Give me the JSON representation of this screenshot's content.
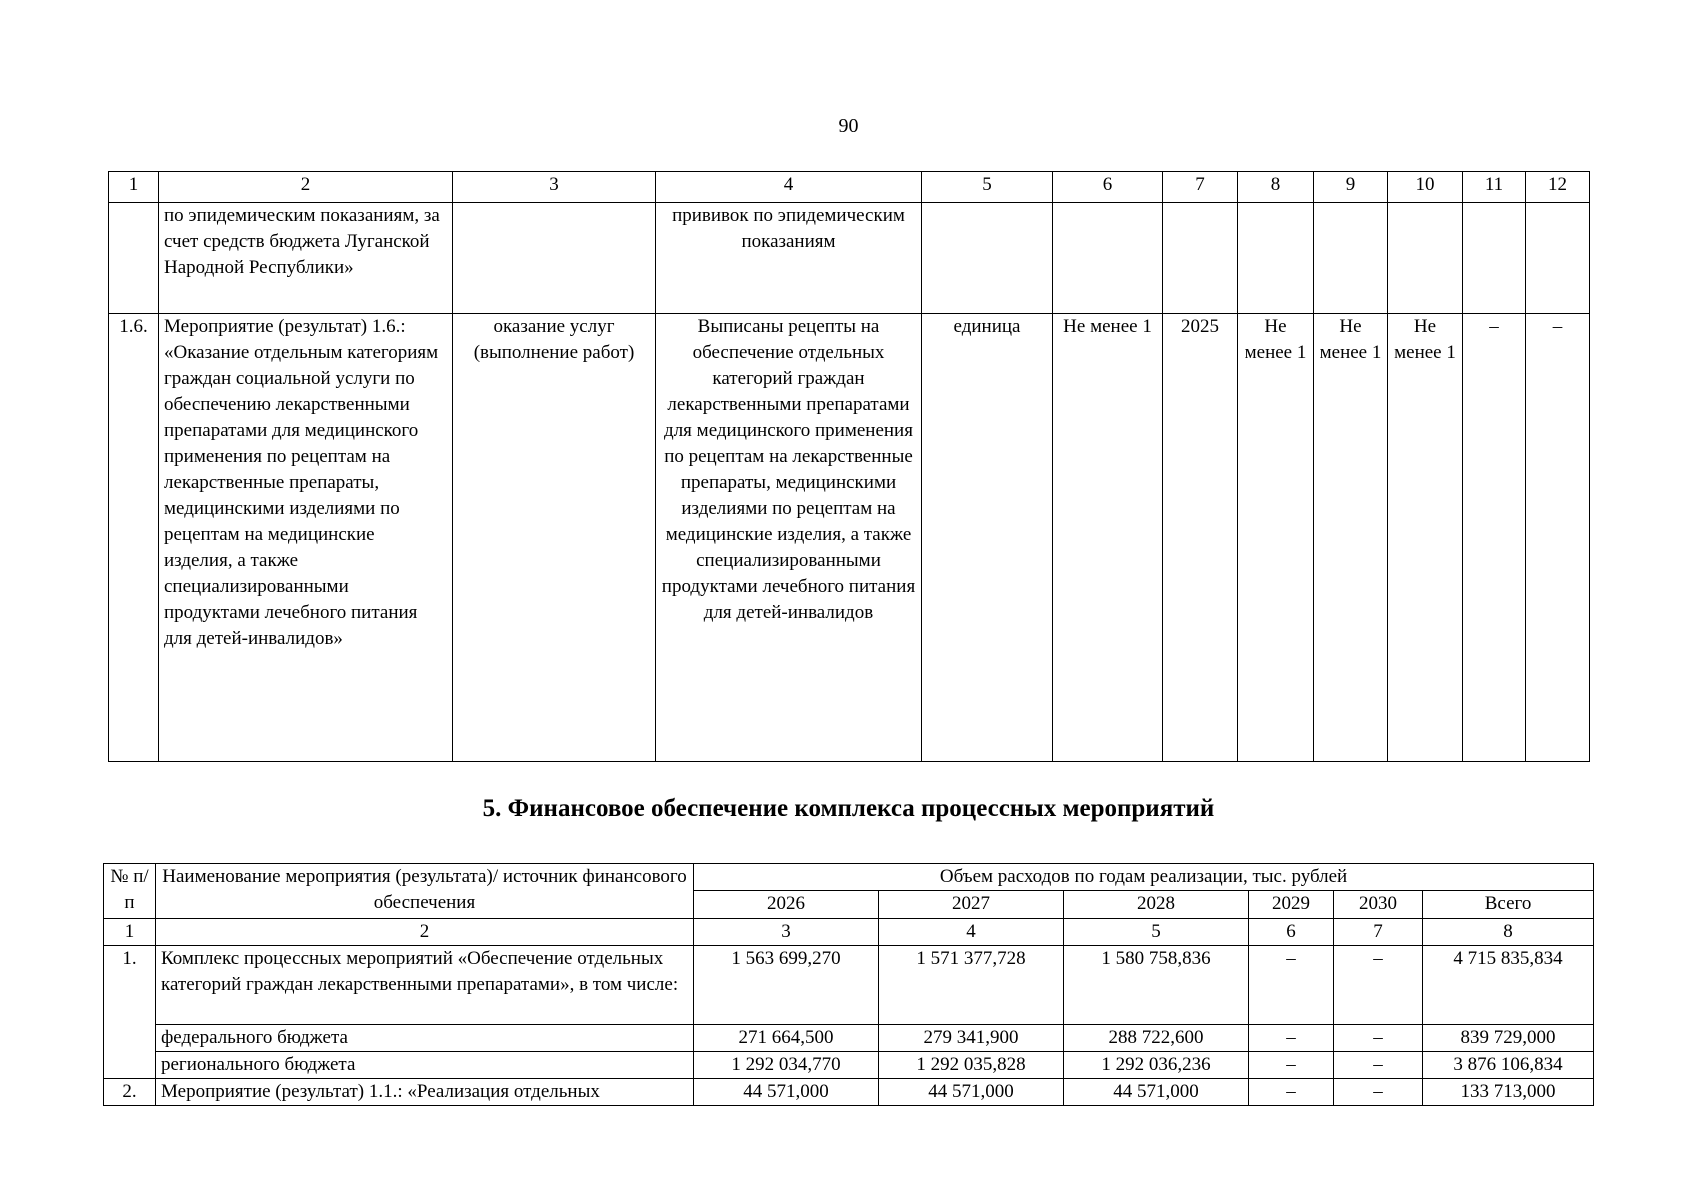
{
  "page_number": "90",
  "table1": {
    "col_numbers": [
      "1",
      "2",
      "3",
      "4",
      "5",
      "6",
      "7",
      "8",
      "9",
      "10",
      "11",
      "12"
    ],
    "rows": [
      [
        "",
        "по эпидемическим показаниям,  за счет средств бюджета Луганской Народной Республики»",
        "",
        "прививок по эпидемическим показаниям",
        "",
        "",
        "",
        "",
        "",
        "",
        "",
        ""
      ],
      [
        "1.6.",
        "Мероприятие (результат) 1.6.: «Оказание отдельным категориям граждан социальной услуги по обеспечению лекарственными препаратами для медицинского применения по рецептам на лекарственные препараты, медицинскими изделиями по рецептам на медицинские изделия, а также специализированными продуктами лечебного питания для детей-инвалидов»",
        "оказание услуг (выполнение работ)",
        "Выписаны рецепты на обеспечение отдельных категорий граждан лекарственными препаратами для медицинского применения по рецептам на лекарственные препараты, медицинскими изделиями по рецептам на медицинские изделия, а также специализированными продуктами лечебного питания для детей-инвалидов",
        "единица",
        "Не менее 1",
        "2025",
        "Не менее 1",
        "Не менее 1",
        "Не менее 1",
        "–",
        "–"
      ]
    ]
  },
  "section_title": "5. Финансовое обеспечение комплекса процессных мероприятий",
  "table2": {
    "h_num": "№ п/п",
    "h_name": "Наименование мероприятия (результата)/ источник финансового обеспечения",
    "h_volume": "Объем расходов по годам реализации, тыс. рублей",
    "years": [
      "2026",
      "2027",
      "2028",
      "2029",
      "2030",
      "Всего"
    ],
    "col_numbers": [
      "1",
      "2",
      "3",
      "4",
      "5",
      "6",
      "7",
      "8"
    ],
    "rows": [
      {
        "num": "1.",
        "name": "Комплекс процессных мероприятий «Обеспечение отдельных категорий граждан лекарственными препаратами», в том числе:",
        "values": [
          "1 563 699,270",
          "1 571 377,728",
          "1 580 758,836",
          "–",
          "–",
          "4 715 835,834"
        ]
      },
      {
        "num": "",
        "name": "федерального бюджета",
        "values": [
          "271 664,500",
          "279 341,900",
          "288 722,600",
          "–",
          "–",
          "839 729,000"
        ]
      },
      {
        "num": "",
        "name": "регионального бюджета",
        "values": [
          "1 292 034,770",
          "1 292 035,828",
          "1 292 036,236",
          "–",
          "–",
          "3 876 106,834"
        ]
      },
      {
        "num": "2.",
        "name": "Мероприятие (результат) 1.1.: «Реализация отдельных",
        "values": [
          "44 571,000",
          "44 571,000",
          "44 571,000",
          "–",
          "–",
          "133 713,000"
        ]
      }
    ]
  }
}
